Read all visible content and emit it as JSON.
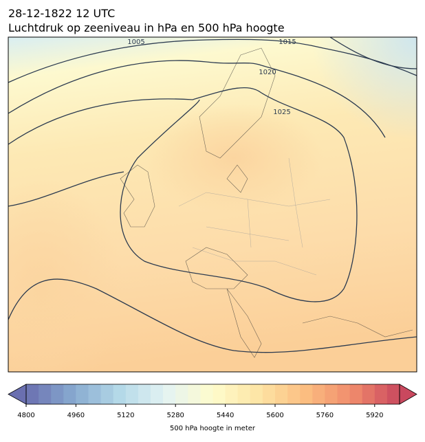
{
  "header": {
    "title": "28-12-1822 12 UTC",
    "subtitle": "Luchtdruk op zeeniveau in hPa en 500 hPa hoogte"
  },
  "isobar_labels": [
    1005,
    1015,
    1020,
    1025
  ],
  "colorbar": {
    "label": "500 hPa hoogte in meter",
    "lim": [
      4800,
      6000
    ],
    "ticks": [
      4800,
      4960,
      5120,
      5280,
      5440,
      5600,
      5760,
      5920
    ],
    "bins": 30,
    "cmap": [
      "#6a6fb0",
      "#87a9cf",
      "#b4d9e8",
      "#e4f3f3",
      "#fefccc",
      "#fde4a4",
      "#fbbd80",
      "#f08a6c",
      "#c9485e"
    ]
  }
}
